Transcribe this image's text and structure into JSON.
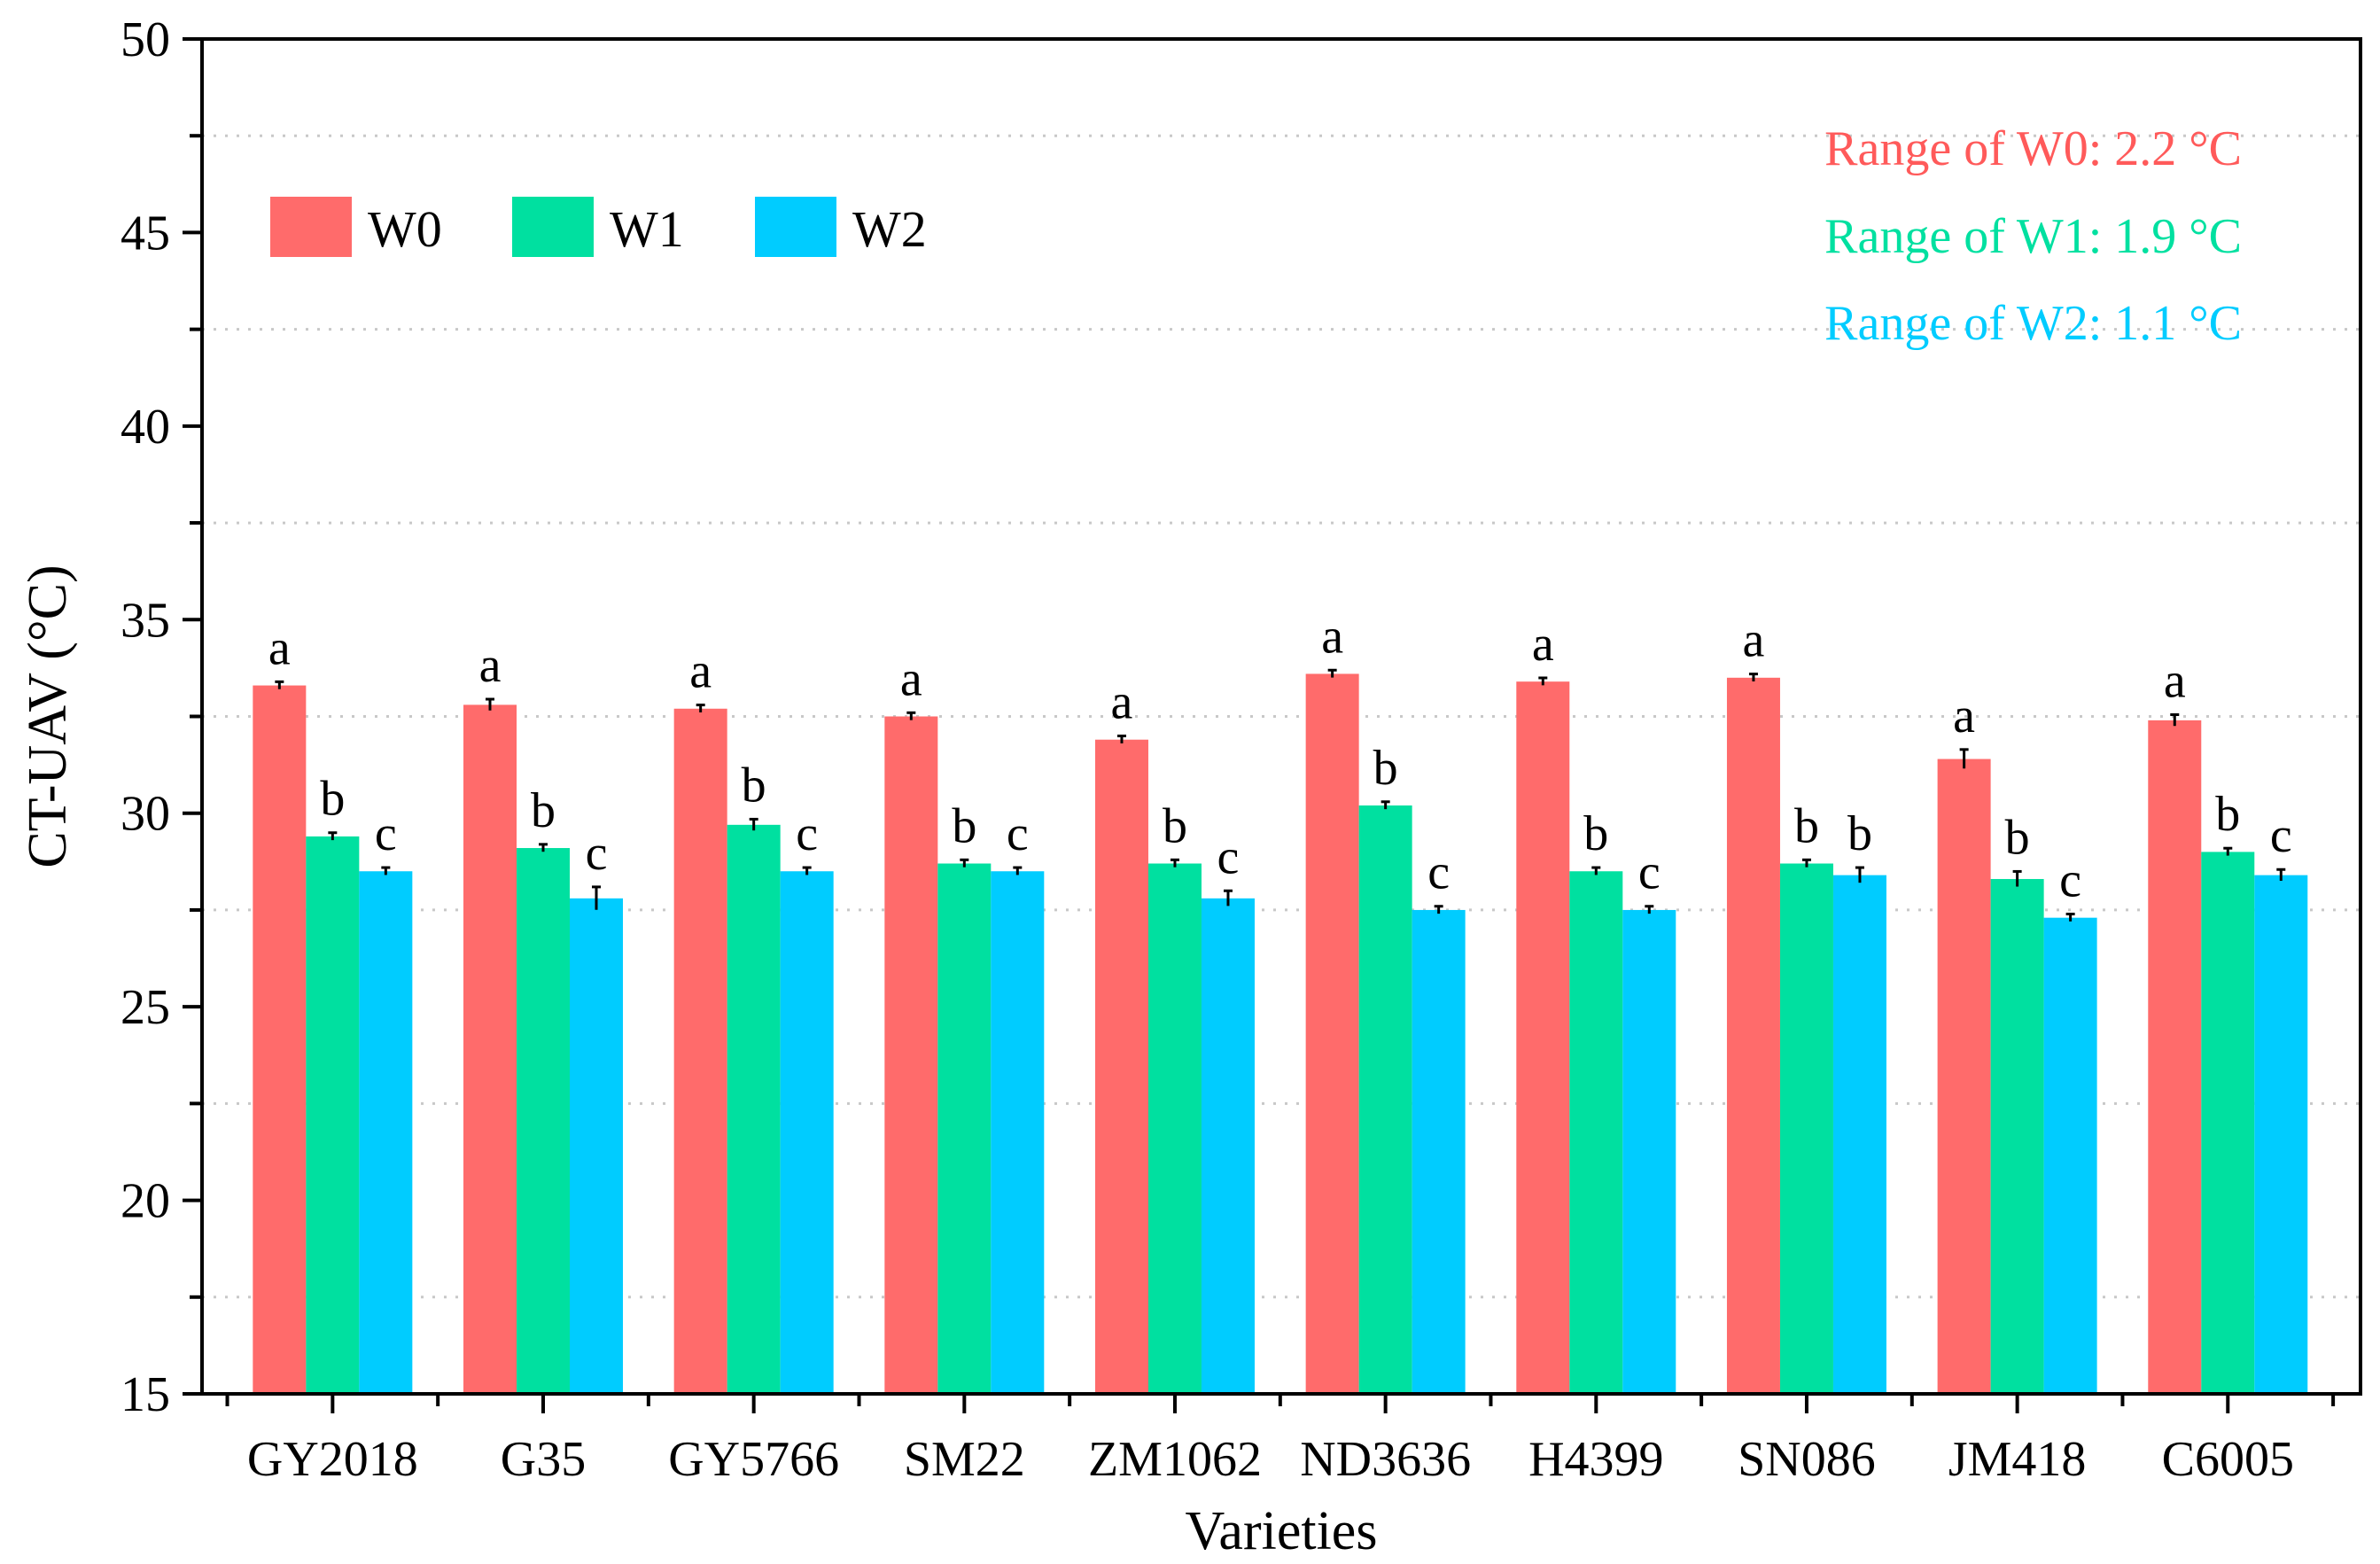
{
  "chart_data": {
    "type": "bar",
    "xlabel": "Varieties",
    "ylabel": "CT-UAV (°C)",
    "ylim": [
      15,
      50
    ],
    "yticks": [
      15,
      20,
      25,
      30,
      35,
      40,
      45,
      50
    ],
    "grid": "horizontal dotted at minor ticks",
    "legend_placement": "top-left",
    "categories": [
      "GY2018",
      "G35",
      "GY5766",
      "SM22",
      "ZM1062",
      "ND3636",
      "H4399",
      "SN086",
      "JM418",
      "C6005"
    ],
    "series": [
      {
        "name": "W0",
        "color": "#ff6b6b",
        "values": [
          33.3,
          32.8,
          32.7,
          32.5,
          31.9,
          33.6,
          33.4,
          33.5,
          31.4,
          32.4
        ],
        "errors": [
          0.05,
          0.1,
          0.05,
          0.05,
          0.05,
          0.05,
          0.05,
          0.05,
          0.2,
          0.1
        ],
        "letters": [
          "a",
          "a",
          "a",
          "a",
          "a",
          "a",
          "a",
          "a",
          "a",
          "a"
        ]
      },
      {
        "name": "W1",
        "color": "#00e0a0",
        "values": [
          29.4,
          29.1,
          29.7,
          28.7,
          28.7,
          30.2,
          28.5,
          28.7,
          28.3,
          29.0
        ],
        "errors": [
          0.05,
          0.05,
          0.1,
          0.05,
          0.05,
          0.05,
          0.05,
          0.05,
          0.15,
          0.05
        ],
        "letters": [
          "b",
          "b",
          "b",
          "b",
          "b",
          "b",
          "b",
          "b",
          "b",
          "b"
        ]
      },
      {
        "name": "W2",
        "color": "#00ccff",
        "values": [
          28.5,
          27.8,
          28.5,
          28.5,
          27.8,
          27.5,
          27.5,
          28.4,
          27.3,
          28.4
        ],
        "errors": [
          0.05,
          0.25,
          0.05,
          0.05,
          0.15,
          0.05,
          0.05,
          0.15,
          0.05,
          0.1
        ],
        "letters": [
          "c",
          "c",
          "c",
          "c",
          "c",
          "c",
          "c",
          "b",
          "c",
          "c"
        ]
      }
    ],
    "annotations": [
      {
        "text": "Range of W0: 2.2 °C",
        "color": "#ff5a5a"
      },
      {
        "text": "Range of W1: 1.9 °C",
        "color": "#00e0a0"
      },
      {
        "text": "Range of W2: 1.1 °C",
        "color": "#00ccff"
      }
    ]
  }
}
